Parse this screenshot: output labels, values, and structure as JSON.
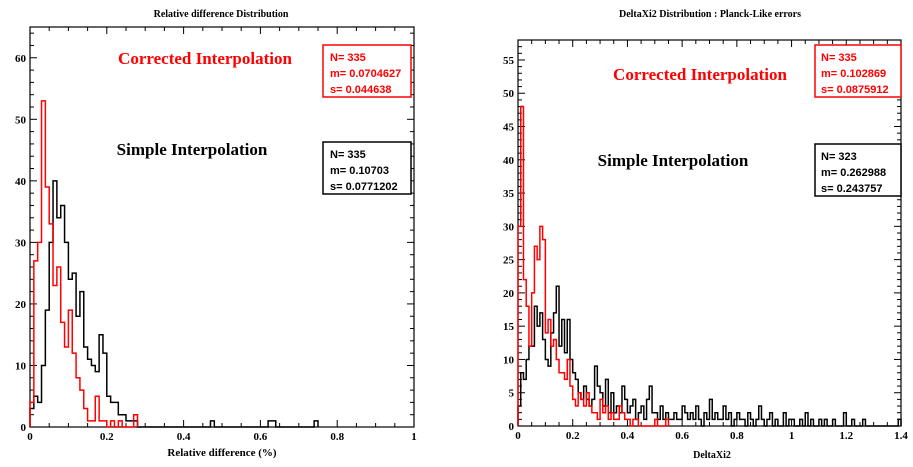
{
  "chart_data": [
    {
      "type": "histogram",
      "title": "Relative difference Distribution",
      "xlabel": "Relative difference (%)",
      "ylabel": "",
      "xlim": [
        0,
        1
      ],
      "ylim": [
        0,
        65
      ],
      "xticks": [
        0,
        0.2,
        0.4,
        0.6,
        0.8,
        1
      ],
      "xtick_labels": [
        "0",
        "0.2",
        "0.4",
        "0.6",
        "0.8",
        "1"
      ],
      "yticks": [
        0,
        10,
        20,
        30,
        40,
        50,
        60
      ],
      "ytick_labels": [
        "0",
        "10",
        "20",
        "30",
        "40",
        "50",
        "60"
      ],
      "bin_width": 0.01,
      "annotations": {
        "red_title": "Corrected Interpolation",
        "black_title": "Simple Interpolation"
      },
      "series": [
        {
          "name": "Corrected Interpolation",
          "color": "#ff0000",
          "start": 0,
          "values": [
            4,
            27,
            30,
            53,
            39,
            33,
            23,
            26,
            17,
            13,
            19,
            12,
            8,
            6,
            3,
            1,
            1,
            5,
            1,
            1,
            0,
            1,
            0,
            1,
            0,
            0,
            0,
            2
          ],
          "stats": {
            "n": "N= 335",
            "m": "m= 0.0704627",
            "s": "s= 0.044638"
          }
        },
        {
          "name": "Simple Interpolation",
          "color": "#000000",
          "start": 0,
          "values": [
            3,
            5,
            4,
            10,
            19,
            30,
            40,
            34,
            36,
            30,
            24,
            25,
            18,
            22,
            13,
            11,
            10,
            9,
            15,
            12,
            5,
            4,
            4,
            2,
            2,
            1,
            1,
            1,
            0,
            0,
            0,
            0,
            0,
            0,
            0,
            0,
            0,
            0,
            0,
            0,
            0,
            0,
            0,
            0,
            0,
            0,
            0,
            1,
            0,
            0,
            0,
            0,
            0,
            0,
            0,
            0,
            0,
            0,
            0,
            0,
            0,
            0,
            1,
            1,
            0,
            0,
            0,
            0,
            0,
            0,
            0,
            0,
            0,
            0,
            1
          ],
          "stats": {
            "n": "N= 335",
            "m": "m= 0.10703",
            "s": "s= 0.0771202"
          }
        }
      ]
    },
    {
      "type": "histogram",
      "title": "DeltaXi2 Distribution : Planck-Like errors",
      "xlabel": "DeltaXi2",
      "ylabel": "",
      "xlim": [
        0,
        1.4
      ],
      "ylim": [
        0,
        58
      ],
      "xticks": [
        0,
        0.2,
        0.4,
        0.6,
        0.8,
        1,
        1.2,
        1.4
      ],
      "xtick_labels": [
        "0",
        "0.2",
        "0.4",
        "0.6",
        "0.8",
        "1",
        "1.2",
        "1.4"
      ],
      "yticks": [
        0,
        5,
        10,
        15,
        20,
        25,
        30,
        35,
        40,
        45,
        50,
        55
      ],
      "ytick_labels": [
        "0",
        "5",
        "10",
        "15",
        "20",
        "25",
        "30",
        "35",
        "40",
        "45",
        "50",
        "55"
      ],
      "bin_width": 0.01,
      "annotations": {
        "red_title": "Corrected Interpolation",
        "black_title": "Simple Interpolation"
      },
      "series": [
        {
          "name": "Corrected Interpolation",
          "color": "#ff0000",
          "start": 0,
          "values": [
            30,
            48,
            22,
            18,
            12,
            20,
            27,
            25,
            30,
            28,
            14,
            16,
            12,
            13,
            10,
            8,
            8,
            7,
            10,
            6,
            4,
            3,
            5,
            4,
            3,
            5,
            3,
            2,
            2,
            1,
            4,
            2,
            3,
            1,
            2,
            1,
            1,
            3,
            2,
            1,
            1,
            0,
            1,
            1,
            0,
            0,
            0,
            0,
            0,
            0,
            1,
            0,
            0,
            0,
            1
          ],
          "stats": {
            "n": "N= 335",
            "m": "m= 0.102869",
            "s": "s= 0.0875912"
          }
        },
        {
          "name": "Simple Interpolation",
          "color": "#000000",
          "start": 0,
          "values": [
            3,
            8,
            7,
            10,
            12,
            12,
            18,
            15,
            17,
            13,
            10,
            9,
            14,
            17,
            21,
            12,
            16,
            11,
            16,
            10,
            8,
            7,
            5,
            4,
            6,
            4,
            3,
            4,
            9,
            6,
            5,
            3,
            7,
            2,
            5,
            2,
            3,
            2,
            6,
            4,
            2,
            3,
            4,
            1,
            2,
            3,
            1,
            4,
            6,
            2,
            2,
            1,
            3,
            1,
            2,
            1,
            1,
            2,
            1,
            1,
            3,
            2,
            1,
            2,
            1,
            3,
            1,
            0,
            2,
            1,
            4,
            1,
            2,
            1,
            1,
            3,
            1,
            2,
            0,
            1,
            2,
            1,
            1,
            0,
            2,
            1,
            0,
            1,
            3,
            1,
            0,
            1,
            2,
            0,
            1,
            0,
            0,
            2,
            0,
            1,
            1,
            0,
            0,
            1,
            0,
            2,
            0,
            1,
            0,
            0,
            1,
            0,
            1,
            0,
            0,
            1,
            0,
            0,
            0,
            2,
            0,
            0,
            1,
            0,
            0,
            0,
            1,
            0,
            0,
            0,
            0,
            0,
            0,
            0,
            0,
            0,
            0,
            0,
            0,
            1
          ],
          "stats": {
            "n": "N= 323",
            "m": "m= 0.262988",
            "s": "s= 0.243757"
          }
        }
      ]
    }
  ]
}
